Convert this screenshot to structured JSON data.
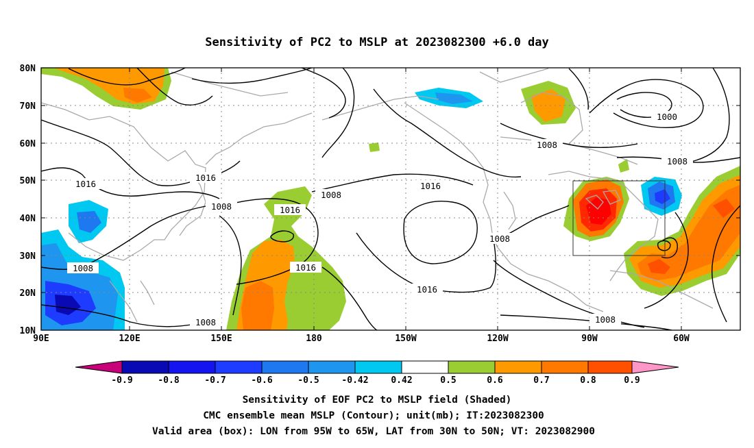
{
  "title": "Sensitivity of PC2 to MSLP at 2023082300 +6.0 day",
  "axes": {
    "lat_labels": [
      "80N",
      "70N",
      "60N",
      "50N",
      "40N",
      "30N",
      "20N",
      "10N"
    ],
    "lon_labels": [
      "90E",
      "120E",
      "150E",
      "180",
      "150W",
      "120W",
      "90W",
      "60W"
    ]
  },
  "contour_labels": [
    "1016",
    "1016",
    "1008",
    "1008",
    "1016",
    "1008",
    "1016",
    "1016",
    "1008",
    "1016",
    "1008",
    "1008",
    "1008",
    "1000",
    "1008"
  ],
  "colorbar": {
    "labels": [
      "-0.9",
      "-0.8",
      "-0.7",
      "-0.6",
      "-0.5",
      "-0.42",
      "0.42",
      "0.5",
      "0.6",
      "0.7",
      "0.8",
      "0.9"
    ],
    "colors": [
      "#c8007a",
      "#0a0ab5",
      "#1414f0",
      "#1e3cff",
      "#1e78f0",
      "#1e96f0",
      "#00c8f0",
      "#ffffff",
      "#9acd32",
      "#ff9900",
      "#ff7800",
      "#ff5000",
      "#ff2800",
      "#ff0000",
      "#ff96c8"
    ]
  },
  "captions": [
    "Sensitivity of EOF PC2 to MSLP field (Shaded)",
    "CMC ensemble mean MSLP (Contour); unit(mb); IT:2023082300",
    "Valid area (box): LON from 95W to 65W, LAT from 30N to 50N; VT: 2023082900"
  ]
}
